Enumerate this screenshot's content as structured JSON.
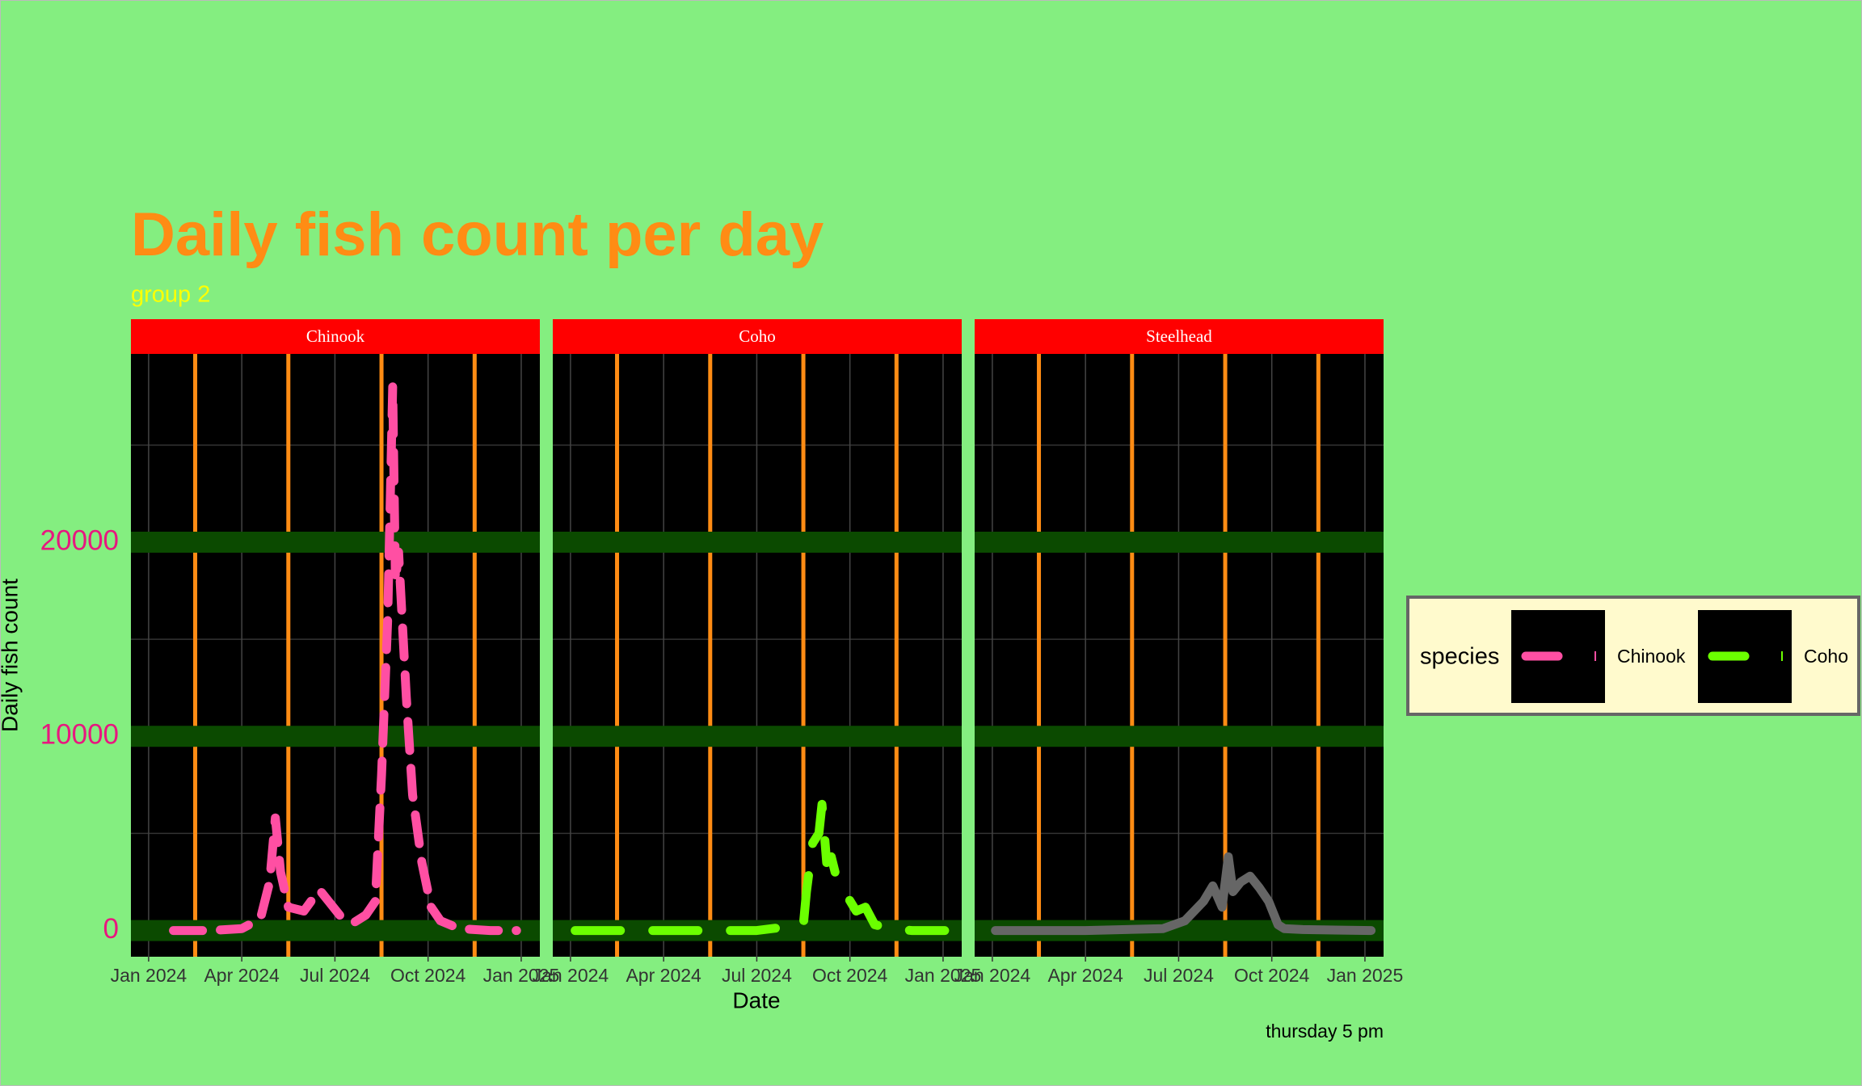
{
  "chart_data": {
    "type": "line",
    "title": "Daily fish count per day",
    "subtitle": "group 2",
    "caption": "thursday 5 pm",
    "xlabel": "Date",
    "ylabel": "Daily fish count",
    "legend_title": "species",
    "grid": true,
    "xlim": [
      -0.57,
      12.6
    ],
    "xticks": [
      {
        "value": 0,
        "label": "Jan 2024"
      },
      {
        "value": 3,
        "label": "Apr 2024"
      },
      {
        "value": 6,
        "label": "Jul 2024"
      },
      {
        "value": 9,
        "label": "Oct 2024"
      },
      {
        "value": 12,
        "label": "Jan 2025"
      }
    ],
    "ylim": [
      -1350,
      29700
    ],
    "yticks": [
      0,
      10000,
      20000
    ],
    "series": [
      {
        "name": "Chinook",
        "color": "#ff4fa3",
        "linetype": "dashed",
        "show_in_legend": true,
        "x": [
          0.8,
          2,
          3,
          3.6,
          3.9,
          4.08,
          4.25,
          4.5,
          5.0,
          5.5,
          5.8,
          6.2,
          6.6,
          7.0,
          7.3,
          7.5,
          7.7,
          7.86,
          7.95,
          8.05,
          8.3,
          8.5,
          8.8,
          9.1,
          9.4,
          10,
          11,
          11.85
        ],
        "values": [
          0,
          0,
          100,
          600,
          2500,
          5800,
          3000,
          1200,
          1000,
          2100,
          1500,
          700,
          400,
          800,
          1500,
          8000,
          16000,
          28000,
          18000,
          19500,
          12000,
          7000,
          3500,
          1200,
          500,
          100,
          0,
          0
        ]
      },
      {
        "name": "Coho",
        "color": "#6bff00",
        "linetype": "longdash",
        "show_in_legend": true,
        "x": [
          0.15,
          2,
          4,
          6,
          7.5,
          7.6,
          7.8,
          8.0,
          8.1,
          8.25,
          8.4,
          8.6,
          8.9,
          9.2,
          9.5,
          9.8,
          10.3,
          11,
          12.05
        ],
        "values": [
          0,
          0,
          0,
          0,
          300,
          2000,
          4500,
          5000,
          6500,
          3500,
          3800,
          2500,
          1800,
          1000,
          1200,
          300,
          100,
          0,
          0
        ]
      },
      {
        "name": "Steelhead",
        "color": "#666666",
        "linetype": "solid",
        "show_in_legend": false,
        "x": [
          0.1,
          3,
          5.5,
          6.2,
          6.8,
          7.1,
          7.4,
          7.6,
          7.75,
          8.0,
          8.3,
          8.6,
          8.9,
          9.2,
          9.4,
          10,
          12.2
        ],
        "values": [
          0,
          0,
          100,
          500,
          1500,
          2300,
          1200,
          3800,
          2000,
          2500,
          2800,
          2200,
          1500,
          300,
          100,
          50,
          0
        ]
      }
    ]
  }
}
